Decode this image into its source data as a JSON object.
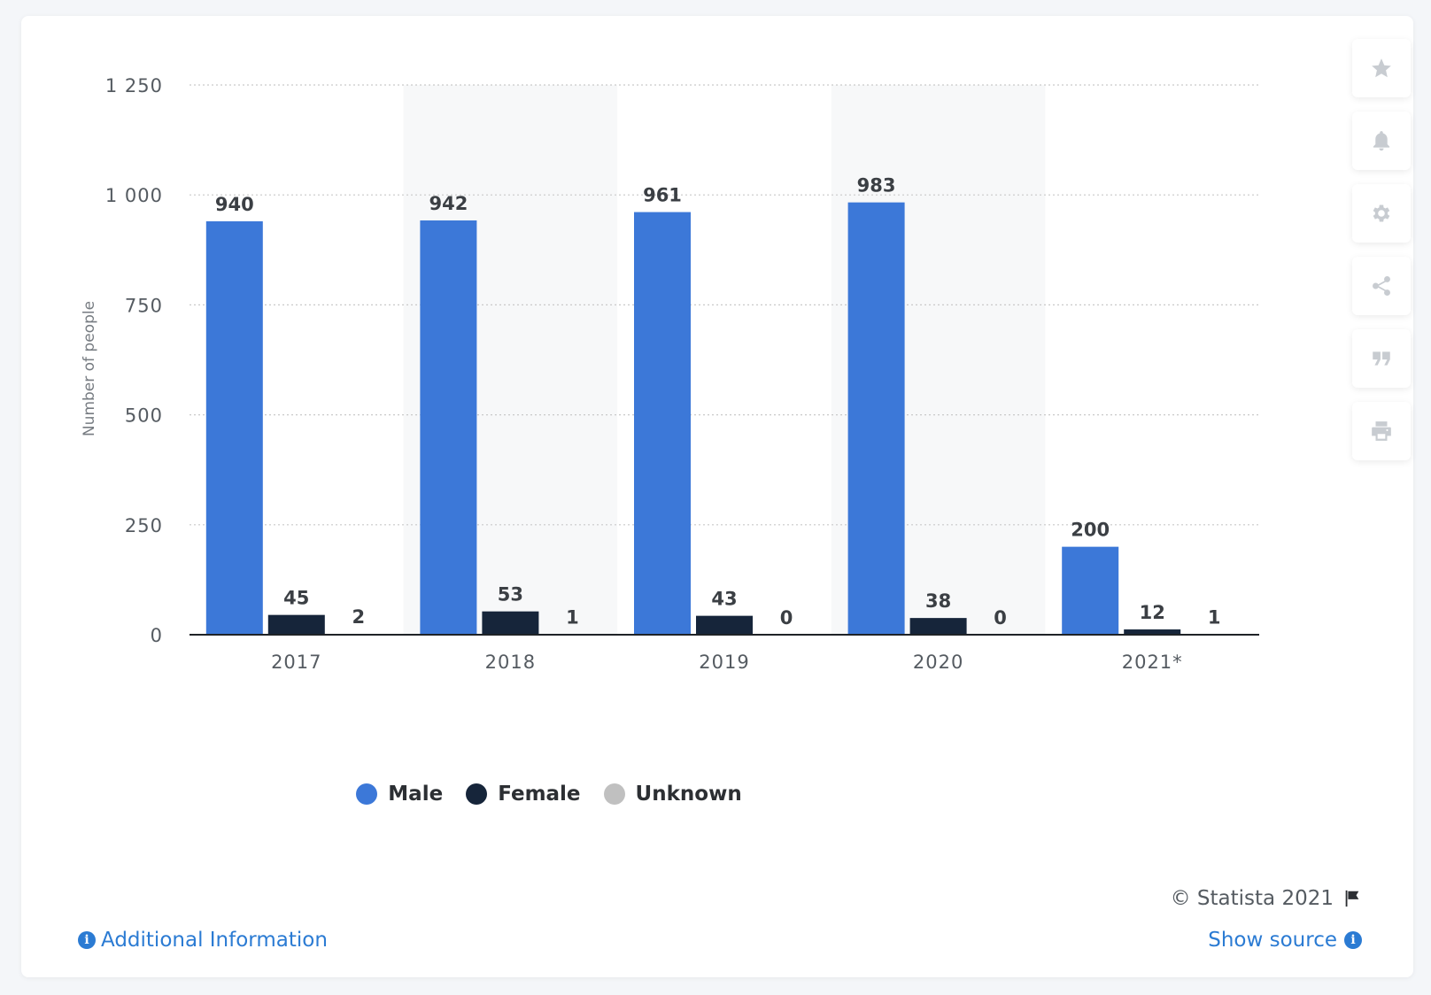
{
  "chart_data": {
    "type": "bar",
    "categories": [
      "2017",
      "2018",
      "2019",
      "2020",
      "2021*"
    ],
    "series": [
      {
        "name": "Male",
        "color": "#3c78d8",
        "values": [
          940,
          942,
          961,
          983,
          200
        ]
      },
      {
        "name": "Female",
        "color": "#16253a",
        "values": [
          45,
          53,
          43,
          38,
          12
        ]
      },
      {
        "name": "Unknown",
        "color": "#c0c0c0",
        "values": [
          2,
          1,
          0,
          0,
          1
        ]
      }
    ],
    "ylabel": "Number of people",
    "ylim": [
      0,
      1250
    ],
    "yticks": [
      0,
      250,
      500,
      750,
      1000,
      1250
    ],
    "ytick_labels": [
      "0",
      "250",
      "500",
      "750",
      "1 000",
      "1 250"
    ],
    "grid": true,
    "legend_position": "bottom-center",
    "data_labels": true
  },
  "legend": {
    "items": [
      {
        "label": "Male",
        "color": "#3c78d8"
      },
      {
        "label": "Female",
        "color": "#16253a"
      },
      {
        "label": "Unknown",
        "color": "#c0c0c0"
      }
    ]
  },
  "toolbar": {
    "icons": [
      "star-icon",
      "bell-icon",
      "gear-icon",
      "share-icon",
      "quote-icon",
      "print-icon"
    ]
  },
  "footer": {
    "copyright": "© Statista 2021",
    "additional_info": "Additional Information",
    "show_source": "Show source",
    "info_symbol": "i"
  }
}
